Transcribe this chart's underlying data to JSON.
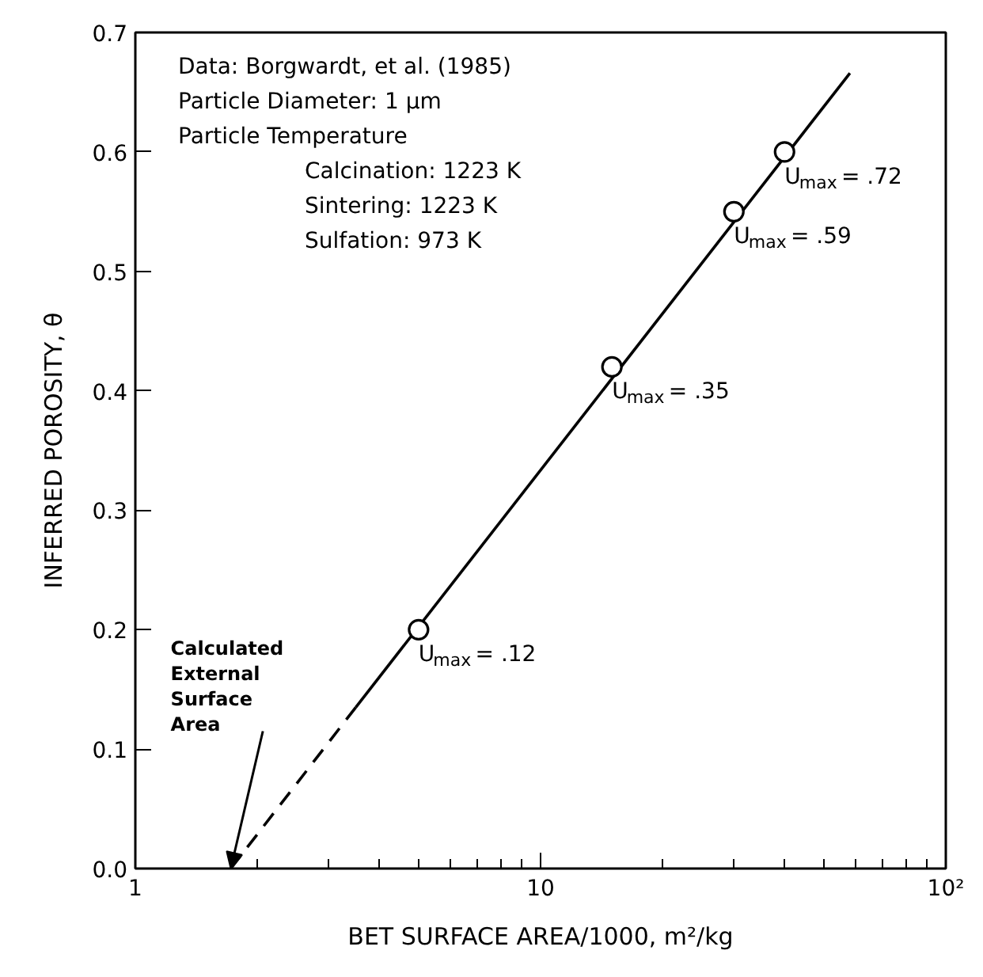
{
  "chart_data": {
    "type": "scatter",
    "xlabel": "BET SURFACE AREA/1000, m²/kg",
    "ylabel": "INFERRED POROSITY, θ",
    "log": "x",
    "xlim": [
      1,
      100
    ],
    "ylim": [
      0,
      0.7
    ],
    "xticks": [
      {
        "value": 1,
        "label": "1"
      },
      {
        "value": 2,
        "label": null
      },
      {
        "value": 3,
        "label": null
      },
      {
        "value": 4,
        "label": null
      },
      {
        "value": 5,
        "label": null
      },
      {
        "value": 6,
        "label": null
      },
      {
        "value": 7,
        "label": null
      },
      {
        "value": 8,
        "label": null
      },
      {
        "value": 9,
        "label": null
      },
      {
        "value": 10,
        "label": "10"
      },
      {
        "value": 20,
        "label": null
      },
      {
        "value": 30,
        "label": null
      },
      {
        "value": 40,
        "label": null
      },
      {
        "value": 50,
        "label": null
      },
      {
        "value": 60,
        "label": null
      },
      {
        "value": 70,
        "label": null
      },
      {
        "value": 80,
        "label": null
      },
      {
        "value": 90,
        "label": null
      },
      {
        "value": 100,
        "label": "10²"
      }
    ],
    "yticks": [
      {
        "value": 0,
        "label": "0.0"
      },
      {
        "value": 0.1,
        "label": "0.1"
      },
      {
        "value": 0.2,
        "label": "0.2"
      },
      {
        "value": 0.3,
        "label": "0.3"
      },
      {
        "value": 0.4,
        "label": "0.4"
      },
      {
        "value": 0.5,
        "label": "0.5"
      },
      {
        "value": 0.6,
        "label": "0.6"
      },
      {
        "value": 0.7,
        "label": "0.7"
      }
    ],
    "grid": false,
    "series": [
      {
        "type": "line",
        "color": "#000000",
        "line_style": "solid",
        "marker": "none",
        "x": [
          3.5,
          58
        ],
        "values": [
          0.135,
          0.666
        ]
      },
      {
        "type": "line",
        "color": "#000000",
        "line_style": "dashed",
        "marker": "none",
        "x": [
          1.72,
          3.5
        ],
        "values": [
          0,
          0.135
        ]
      },
      {
        "color": "#000000",
        "marker": "circle",
        "x": [
          5,
          15,
          30,
          40
        ],
        "values": [
          0.2,
          0.42,
          0.55,
          0.6
        ]
      }
    ],
    "annotations": [
      "Data: Borgwardt, et al. (1985)",
      "Particle Diameter: 1 μm",
      "Particle Temperature",
      "Calcination: 1223 K",
      "Sintering: 1223 K",
      "Sulfation: 973 K",
      {
        "text": "U$_{max}$= .12",
        "x": 5,
        "y": 0.2
      },
      {
        "text": "U$_{max}$= .35",
        "x": 15,
        "y": 0.42
      },
      {
        "text": "U$_{max}$= .59",
        "x": 30,
        "y": 0.55
      },
      {
        "text": "U$_{max}$= .72",
        "x": 40,
        "y": 0.6
      },
      {
        "text": "Calculated External Surface Area",
        "x": 1.72,
        "y": 0
      }
    ]
  }
}
